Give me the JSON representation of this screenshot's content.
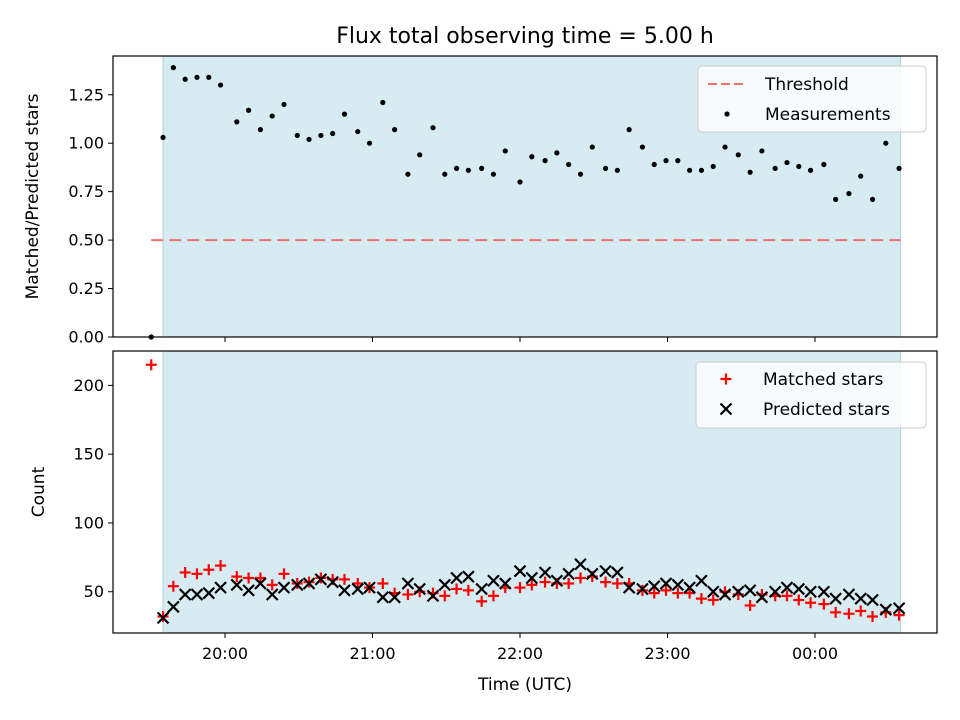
{
  "chart_data": [
    {
      "type": "scatter",
      "title": "Flux total observing time = 5.00 h",
      "xlabel": "",
      "ylabel": "Matched/Predicted stars",
      "ylim": [
        0,
        1.45
      ],
      "yticks": [
        "0.00",
        "0.25",
        "0.50",
        "0.75",
        "1.00",
        "1.25"
      ],
      "observing_window_hours": [
        -0.42,
        4.58
      ],
      "threshold": {
        "label": "Threshold",
        "value": 0.5,
        "color": "#f07070"
      },
      "series": [
        {
          "name": "Measurements",
          "color": "#000000",
          "x_hours": [
            -0.5,
            -0.42,
            -0.35,
            -0.27,
            -0.19,
            -0.11,
            -0.03,
            0.08,
            0.16,
            0.24,
            0.32,
            0.4,
            0.49,
            0.57,
            0.65,
            0.73,
            0.81,
            0.9,
            0.98,
            1.07,
            1.15,
            1.24,
            1.32,
            1.41,
            1.49,
            1.57,
            1.65,
            1.74,
            1.82,
            1.9,
            2.0,
            2.08,
            2.17,
            2.25,
            2.33,
            2.41,
            2.49,
            2.58,
            2.66,
            2.74,
            2.83,
            2.91,
            2.99,
            3.07,
            3.15,
            3.23,
            3.31,
            3.39,
            3.48,
            3.56,
            3.64,
            3.73,
            3.81,
            3.89,
            3.97,
            4.06,
            4.14,
            4.23,
            4.31,
            4.39,
            4.48,
            4.57
          ],
          "values": [
            0.0,
            1.03,
            1.39,
            1.33,
            1.34,
            1.34,
            1.3,
            1.11,
            1.17,
            1.07,
            1.14,
            1.2,
            1.04,
            1.02,
            1.04,
            1.05,
            1.15,
            1.06,
            1.0,
            1.21,
            1.07,
            0.84,
            0.94,
            1.08,
            0.84,
            0.87,
            0.86,
            0.87,
            0.84,
            0.96,
            0.8,
            0.93,
            0.91,
            0.95,
            0.89,
            0.84,
            0.98,
            0.87,
            0.86,
            1.07,
            0.98,
            0.89,
            0.91,
            0.91,
            0.86,
            0.86,
            0.88,
            0.98,
            0.94,
            0.85,
            0.96,
            0.87,
            0.9,
            0.88,
            0.86,
            0.89,
            0.71,
            0.74,
            0.83,
            0.71,
            1.0,
            0.87
          ]
        }
      ]
    },
    {
      "type": "scatter",
      "title": "",
      "xlabel": "Time (UTC)",
      "ylabel": "Count",
      "ylim": [
        20,
        225
      ],
      "yticks": [
        "50",
        "100",
        "150",
        "200"
      ],
      "xticks": [
        "20:00",
        "21:00",
        "22:00",
        "23:00",
        "00:00"
      ],
      "series": [
        {
          "name": "Matched stars",
          "marker": "+",
          "color": "#ff0000",
          "x_hours": [
            -0.5,
            -0.42,
            -0.35,
            -0.27,
            -0.19,
            -0.11,
            -0.03,
            0.08,
            0.16,
            0.24,
            0.32,
            0.4,
            0.49,
            0.57,
            0.65,
            0.73,
            0.81,
            0.9,
            0.98,
            1.07,
            1.15,
            1.24,
            1.32,
            1.41,
            1.49,
            1.57,
            1.65,
            1.74,
            1.82,
            1.9,
            2.0,
            2.08,
            2.17,
            2.25,
            2.33,
            2.41,
            2.49,
            2.58,
            2.66,
            2.74,
            2.83,
            2.91,
            2.99,
            3.07,
            3.15,
            3.23,
            3.31,
            3.39,
            3.48,
            3.56,
            3.64,
            3.73,
            3.81,
            3.89,
            3.97,
            4.06,
            4.14,
            4.23,
            4.31,
            4.39,
            4.48,
            4.57
          ],
          "values": [
            215,
            32,
            54,
            64,
            63,
            66,
            69,
            61,
            60,
            60,
            55,
            63,
            56,
            57,
            60,
            59,
            59,
            56,
            53,
            56,
            49,
            48,
            50,
            49,
            47,
            52,
            51,
            43,
            47,
            53,
            53,
            55,
            57,
            56,
            56,
            60,
            61,
            57,
            56,
            56,
            51,
            49,
            51,
            49,
            49,
            45,
            44,
            50,
            48,
            40,
            48,
            47,
            47,
            44,
            42,
            41,
            35,
            34,
            36,
            32,
            35,
            33
          ]
        },
        {
          "name": "Predicted stars",
          "marker": "x",
          "color": "#000000",
          "x_hours": [
            -0.42,
            -0.35,
            -0.27,
            -0.19,
            -0.11,
            -0.03,
            0.08,
            0.16,
            0.24,
            0.32,
            0.4,
            0.49,
            0.57,
            0.65,
            0.73,
            0.81,
            0.9,
            0.98,
            1.07,
            1.15,
            1.24,
            1.32,
            1.41,
            1.49,
            1.57,
            1.65,
            1.74,
            1.82,
            1.9,
            2.0,
            2.08,
            2.17,
            2.25,
            2.33,
            2.41,
            2.49,
            2.58,
            2.66,
            2.74,
            2.83,
            2.91,
            2.99,
            3.07,
            3.15,
            3.23,
            3.31,
            3.39,
            3.48,
            3.56,
            3.64,
            3.73,
            3.81,
            3.89,
            3.97,
            4.06,
            4.14,
            4.23,
            4.31,
            4.39,
            4.48,
            4.57
          ],
          "values": [
            31,
            39,
            48,
            48,
            49,
            53,
            55,
            51,
            56,
            48,
            53,
            55,
            56,
            59,
            57,
            51,
            52,
            53,
            46,
            46,
            56,
            52,
            47,
            55,
            60,
            61,
            52,
            58,
            56,
            65,
            60,
            64,
            58,
            63,
            70,
            63,
            65,
            64,
            53,
            52,
            54,
            56,
            55,
            53,
            58,
            50,
            48,
            50,
            51,
            46,
            50,
            53,
            52,
            50,
            50,
            45,
            48,
            45,
            44,
            37,
            38
          ]
        }
      ]
    }
  ]
}
